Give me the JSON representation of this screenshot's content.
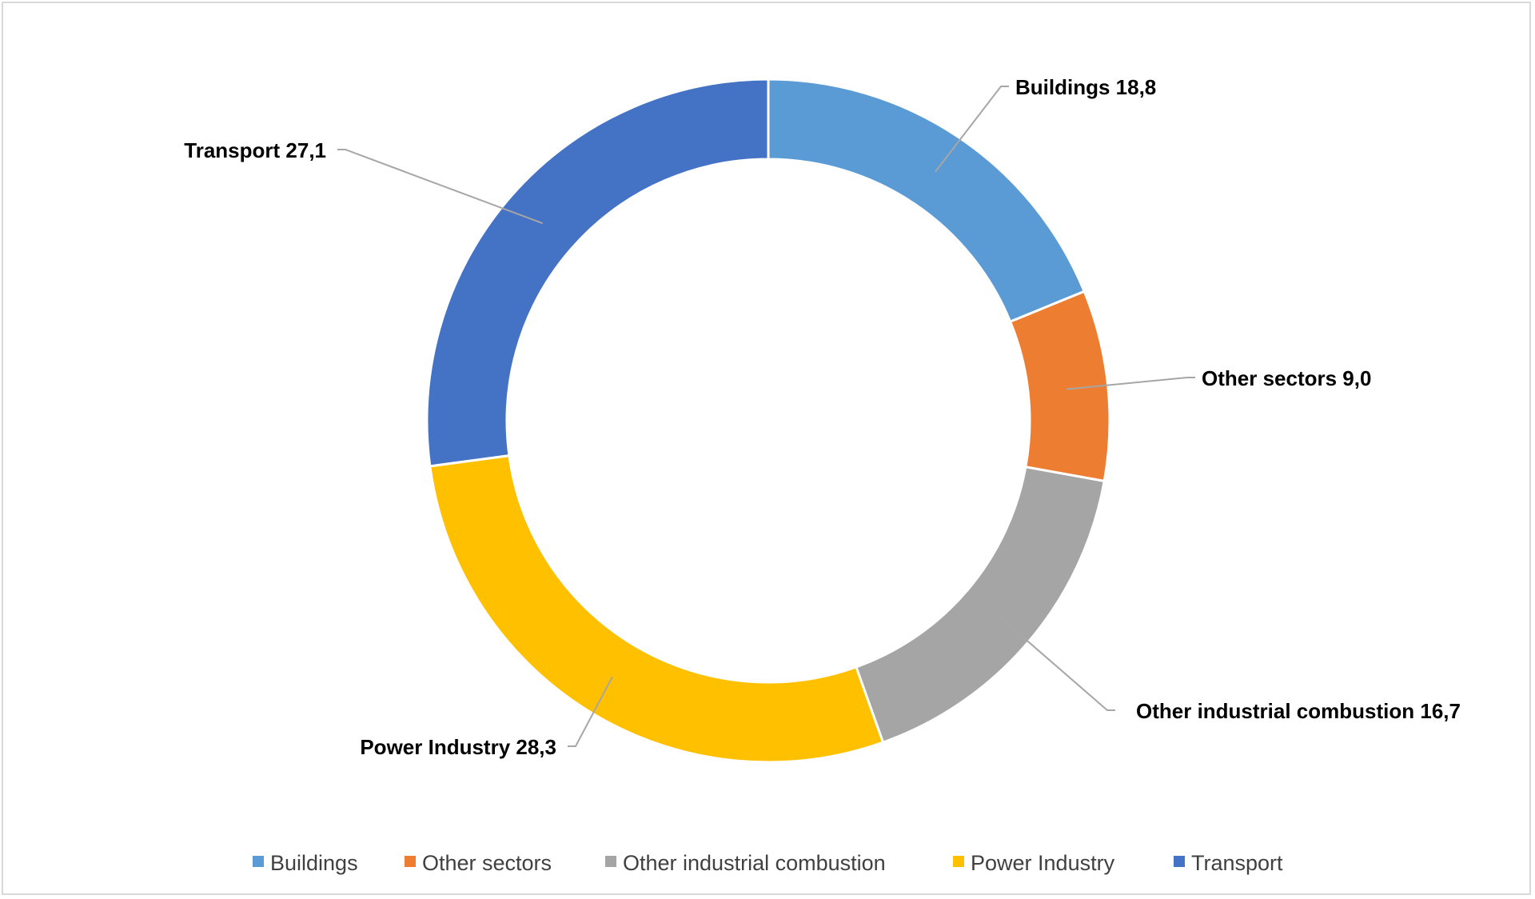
{
  "chart_data": {
    "type": "pie",
    "variant": "doughnut",
    "title": "",
    "start_angle_deg": 0,
    "direction": "clockwise",
    "slices": [
      {
        "label": "Buildings",
        "value": 18.8,
        "value_label": "18,8",
        "color": "#5b9bd5"
      },
      {
        "label": "Other sectors",
        "value": 9.0,
        "value_label": "9,0",
        "color": "#ed7d31"
      },
      {
        "label": "Other industrial combustion",
        "value": 16.7,
        "value_label": "16,7",
        "color": "#a5a5a5"
      },
      {
        "label": "Power Industry",
        "value": 28.3,
        "value_label": "28,3",
        "color": "#ffc000"
      },
      {
        "label": "Transport",
        "value": 27.1,
        "value_label": "27,1",
        "color": "#4472c4"
      }
    ],
    "legend": {
      "position": "bottom",
      "entries": [
        "Buildings",
        "Other sectors",
        "Other industrial combustion",
        "Power Industry",
        "Transport"
      ]
    },
    "data_labels": "outside-with-leader-lines"
  }
}
